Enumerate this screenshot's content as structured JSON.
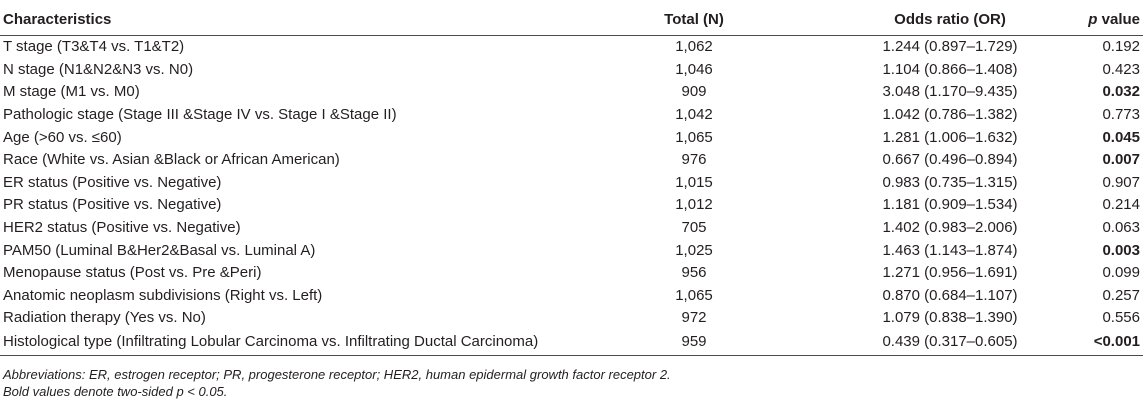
{
  "table": {
    "headers": {
      "characteristics": "Characteristics",
      "total": "Total (N)",
      "odds_ratio": "Odds ratio (OR)",
      "p_italic": "p",
      "p_rest": " value"
    },
    "rows": [
      {
        "characteristic": "T stage (T3&T4 vs. T1&T2)",
        "total": "1,062",
        "odds_ratio": "1.244 (0.897–1.729)",
        "p_value": "0.192",
        "bold": false
      },
      {
        "characteristic": "N stage (N1&N2&N3 vs. N0)",
        "total": "1,046",
        "odds_ratio": "1.104 (0.866–1.408)",
        "p_value": "0.423",
        "bold": false
      },
      {
        "characteristic": "M stage (M1 vs. M0)",
        "total": "909",
        "odds_ratio": "3.048 (1.170–9.435)",
        "p_value": "0.032",
        "bold": true
      },
      {
        "characteristic": "Pathologic stage (Stage III &Stage IV vs. Stage I &Stage II)",
        "total": "1,042",
        "odds_ratio": "1.042 (0.786–1.382)",
        "p_value": "0.773",
        "bold": false
      },
      {
        "characteristic": "Age (>60 vs. ≤60)",
        "total": "1,065",
        "odds_ratio": "1.281 (1.006–1.632)",
        "p_value": "0.045",
        "bold": true
      },
      {
        "characteristic": "Race (White vs. Asian &Black or African American)",
        "total": "976",
        "odds_ratio": "0.667 (0.496–0.894)",
        "p_value": "0.007",
        "bold": true
      },
      {
        "characteristic": "ER status (Positive vs. Negative)",
        "total": "1,015",
        "odds_ratio": "0.983 (0.735–1.315)",
        "p_value": "0.907",
        "bold": false
      },
      {
        "characteristic": "PR status (Positive vs. Negative)",
        "total": "1,012",
        "odds_ratio": "1.181 (0.909–1.534)",
        "p_value": "0.214",
        "bold": false
      },
      {
        "characteristic": "HER2 status (Positive vs. Negative)",
        "total": "705",
        "odds_ratio": "1.402 (0.983–2.006)",
        "p_value": "0.063",
        "bold": false
      },
      {
        "characteristic": "PAM50 (Luminal B&Her2&Basal vs. Luminal A)",
        "total": "1,025",
        "odds_ratio": "1.463 (1.143–1.874)",
        "p_value": "0.003",
        "bold": true
      },
      {
        "characteristic": "Menopause status (Post vs. Pre &Peri)",
        "total": "956",
        "odds_ratio": "1.271 (0.956–1.691)",
        "p_value": "0.099",
        "bold": false
      },
      {
        "characteristic": "Anatomic neoplasm subdivisions (Right vs. Left)",
        "total": "1,065",
        "odds_ratio": "0.870 (0.684–1.107)",
        "p_value": "0.257",
        "bold": false
      },
      {
        "characteristic": "Radiation therapy (Yes vs. No)",
        "total": "972",
        "odds_ratio": "1.079 (0.838–1.390)",
        "p_value": "0.556",
        "bold": false
      },
      {
        "characteristic": "Histological type (Infiltrating Lobular Carcinoma vs. Infiltrating Ductal Carcinoma)",
        "total": "959",
        "odds_ratio": "0.439 (0.317–0.605)",
        "p_value": "<0.001",
        "bold": true
      }
    ]
  },
  "footnotes": {
    "abbreviations": "Abbreviations: ER, estrogen receptor; PR, progesterone receptor; HER2, human epidermal growth factor receptor 2.",
    "bold_note": "Bold values denote two-sided p < 0.05."
  }
}
